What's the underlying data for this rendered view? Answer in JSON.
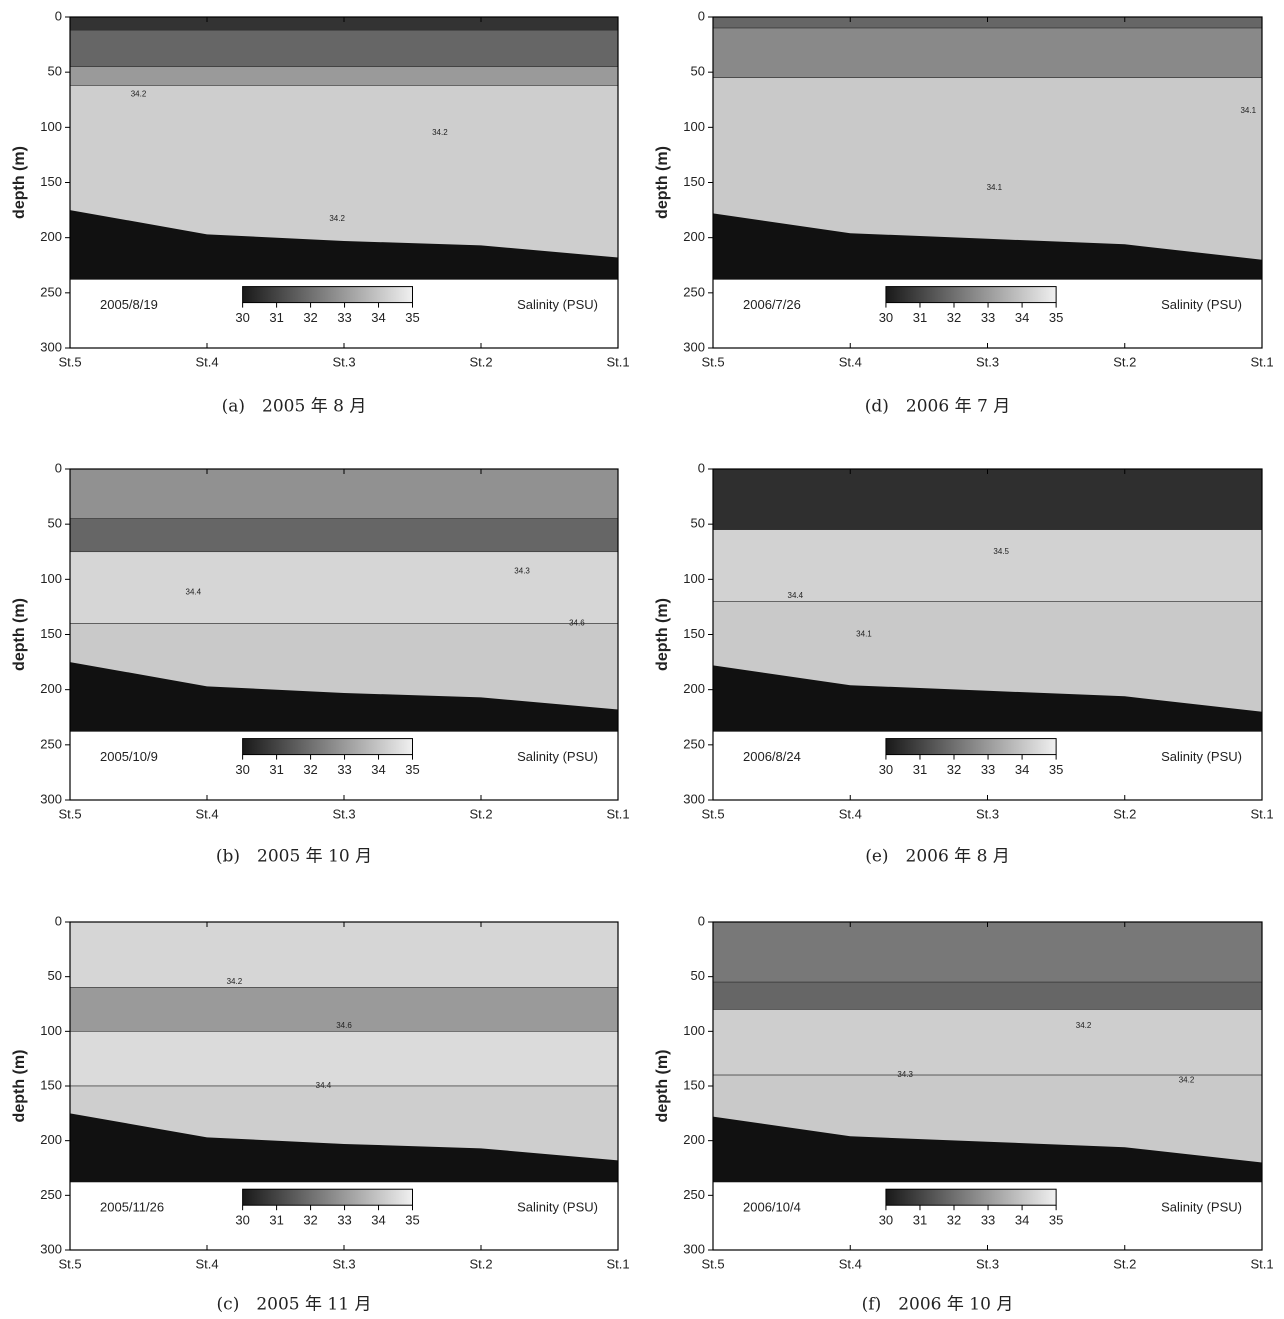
{
  "chart_data": [
    {
      "type": "contour",
      "caption": "(a)　2005 年 8 月",
      "date": "2005/8/19",
      "ylabel": "depth (m)",
      "categories": [
        "St.5",
        "St.4",
        "St.3",
        "St.2",
        "St.1"
      ],
      "ylim": [
        0,
        300
      ],
      "yticks": [
        0,
        50,
        100,
        150,
        200,
        250,
        300
      ],
      "layers": [
        {
          "top": 0,
          "bottom": 12,
          "value": 30.6
        },
        {
          "top": 12,
          "bottom": 45,
          "value": 31.8
        },
        {
          "top": 45,
          "bottom": 62,
          "value": 33
        },
        {
          "top": 62,
          "bottom": 300,
          "value": 34.2
        }
      ],
      "contour_labels": [
        {
          "value": 34.2,
          "station": 0.5,
          "depth": 70
        },
        {
          "value": 34.2,
          "station": 2.7,
          "depth": 105
        },
        {
          "value": 34.2,
          "station": 1.95,
          "depth": 183
        }
      ],
      "seabed": {
        "depth": [
          175,
          197,
          203,
          207,
          218
        ],
        "base": 238
      },
      "colorbar": {
        "label": "Salinity (PSU)",
        "lim": [
          30,
          35
        ],
        "ticks": [
          30,
          31,
          32,
          33,
          34,
          35
        ]
      }
    },
    {
      "type": "contour",
      "caption": "(d)　2006 年 7 月",
      "date": "2006/7/26",
      "ylabel": "depth (m)",
      "categories": [
        "St.5",
        "St.4",
        "St.3",
        "St.2",
        "St.1"
      ],
      "ylim": [
        0,
        300
      ],
      "yticks": [
        0,
        50,
        100,
        150,
        200,
        250,
        300
      ],
      "layers": [
        {
          "top": 0,
          "bottom": 10,
          "value": 31.8
        },
        {
          "top": 10,
          "bottom": 55,
          "value": 32.6
        },
        {
          "top": 55,
          "bottom": 300,
          "value": 34.1
        }
      ],
      "contour_labels": [
        {
          "value": 34.1,
          "station": 3.9,
          "depth": 85
        },
        {
          "value": 34.1,
          "station": 2.05,
          "depth": 155
        }
      ],
      "seabed": {
        "depth": [
          178,
          196,
          201,
          206,
          220
        ],
        "base": 238
      },
      "colorbar": {
        "label": "Salinity (PSU)",
        "lim": [
          30,
          35
        ],
        "ticks": [
          30,
          31,
          32,
          33,
          34,
          35
        ]
      }
    },
    {
      "type": "contour",
      "caption": "(b)　2005 年 10 月",
      "date": "2005/10/9",
      "ylabel": "depth (m)",
      "categories": [
        "St.5",
        "St.4",
        "St.3",
        "St.2",
        "St.1"
      ],
      "ylim": [
        0,
        300
      ],
      "yticks": [
        0,
        50,
        100,
        150,
        200,
        250,
        300
      ],
      "layers": [
        {
          "top": 0,
          "bottom": 45,
          "value": 32.8
        },
        {
          "top": 45,
          "bottom": 75,
          "value": 31.8
        },
        {
          "top": 75,
          "bottom": 140,
          "value": 34.4
        },
        {
          "top": 140,
          "bottom": 300,
          "value": 34.1
        }
      ],
      "contour_labels": [
        {
          "value": 34.4,
          "station": 0.9,
          "depth": 112
        },
        {
          "value": 34.3,
          "station": 3.3,
          "depth": 93
        },
        {
          "value": 34.6,
          "station": 3.7,
          "depth": 140
        }
      ],
      "seabed": {
        "depth": [
          175,
          197,
          203,
          207,
          218
        ],
        "base": 238
      },
      "colorbar": {
        "label": "Salinity (PSU)",
        "lim": [
          30,
          35
        ],
        "ticks": [
          30,
          31,
          32,
          33,
          34,
          35
        ]
      }
    },
    {
      "type": "contour",
      "caption": "(e)　2006 年 8 月",
      "date": "2006/8/24",
      "ylabel": "depth (m)",
      "categories": [
        "St.5",
        "St.4",
        "St.3",
        "St.2",
        "St.1"
      ],
      "ylim": [
        0,
        300
      ],
      "yticks": [
        0,
        50,
        100,
        150,
        200,
        250,
        300
      ],
      "layers": [
        {
          "top": 0,
          "bottom": 55,
          "value": 30.5
        },
        {
          "top": 55,
          "bottom": 120,
          "value": 34.3
        },
        {
          "top": 120,
          "bottom": 300,
          "value": 34.1
        }
      ],
      "contour_labels": [
        {
          "value": 34.5,
          "station": 2.1,
          "depth": 75
        },
        {
          "value": 34.4,
          "station": 0.6,
          "depth": 115
        },
        {
          "value": 34.1,
          "station": 1.1,
          "depth": 150
        }
      ],
      "seabed": {
        "depth": [
          178,
          196,
          201,
          206,
          220
        ],
        "base": 238
      },
      "colorbar": {
        "label": "Salinity (PSU)",
        "lim": [
          30,
          35
        ],
        "ticks": [
          30,
          31,
          32,
          33,
          34,
          35
        ]
      }
    },
    {
      "type": "contour",
      "caption": "(c)　2005 年 11 月",
      "date": "2005/11/26",
      "ylabel": "depth (m)",
      "categories": [
        "St.5",
        "St.4",
        "St.3",
        "St.2",
        "St.1"
      ],
      "ylim": [
        0,
        300
      ],
      "yticks": [
        0,
        50,
        100,
        150,
        200,
        250,
        300
      ],
      "layers": [
        {
          "top": 0,
          "bottom": 60,
          "value": 34.4
        },
        {
          "top": 60,
          "bottom": 100,
          "value": 33
        },
        {
          "top": 100,
          "bottom": 150,
          "value": 34.5
        },
        {
          "top": 150,
          "bottom": 300,
          "value": 34.2
        }
      ],
      "contour_labels": [
        {
          "value": 34.2,
          "station": 1.2,
          "depth": 55
        },
        {
          "value": 34.6,
          "station": 2.0,
          "depth": 95
        },
        {
          "value": 34.4,
          "station": 1.85,
          "depth": 150
        }
      ],
      "seabed": {
        "depth": [
          175,
          197,
          203,
          207,
          218
        ],
        "base": 238
      },
      "colorbar": {
        "label": "Salinity (PSU)",
        "lim": [
          30,
          35
        ],
        "ticks": [
          30,
          31,
          32,
          33,
          34,
          35
        ]
      }
    },
    {
      "type": "contour",
      "caption": "(f)　2006 年 10 月",
      "date": "2006/10/4",
      "ylabel": "depth (m)",
      "categories": [
        "St.5",
        "St.4",
        "St.3",
        "St.2",
        "St.1"
      ],
      "ylim": [
        0,
        300
      ],
      "yticks": [
        0,
        50,
        100,
        150,
        200,
        250,
        300
      ],
      "layers": [
        {
          "top": 0,
          "bottom": 55,
          "value": 32.2
        },
        {
          "top": 55,
          "bottom": 80,
          "value": 31.8
        },
        {
          "top": 80,
          "bottom": 140,
          "value": 34.2
        },
        {
          "top": 140,
          "bottom": 300,
          "value": 34.1
        }
      ],
      "contour_labels": [
        {
          "value": 34.2,
          "station": 2.7,
          "depth": 95
        },
        {
          "value": 34.3,
          "station": 1.4,
          "depth": 140
        },
        {
          "value": 34.2,
          "station": 3.45,
          "depth": 145
        }
      ],
      "seabed": {
        "depth": [
          178,
          196,
          201,
          206,
          220
        ],
        "base": 238
      },
      "colorbar": {
        "label": "Salinity (PSU)",
        "lim": [
          30,
          35
        ],
        "ticks": [
          30,
          31,
          32,
          33,
          34,
          35
        ]
      }
    }
  ]
}
